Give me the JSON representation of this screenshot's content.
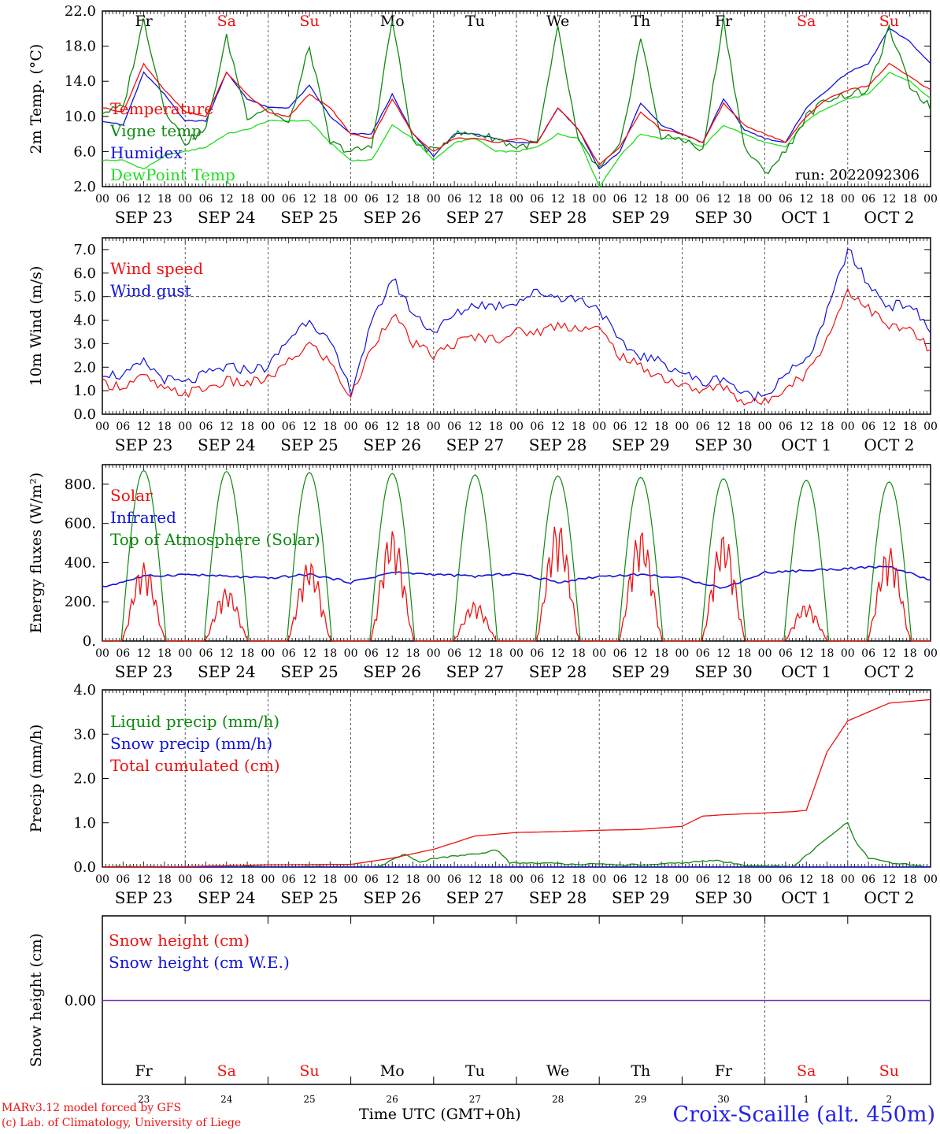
{
  "run_label": "run: 2022092306",
  "footer": {
    "model_line": "MARv3.12 model forced by GFS",
    "copyright_line": "(c) Lab. of Climatology, University of Liege",
    "station": "Croix-Scaille (alt. 450m)",
    "time_axis": "Time UTC (GMT+0h)"
  },
  "colors": {
    "red": "#ee1111",
    "green": "#118811",
    "blue": "#1111dd",
    "lightgreen": "#22dd22",
    "purple": "#7733aa"
  },
  "chart_data": [
    {
      "type": "line",
      "ylabel": "2m Temp. (°C)",
      "ylim": [
        2.0,
        22.0
      ],
      "yticks": [
        "22.0",
        "18.0",
        "14.0",
        "10.0",
        "6.0",
        "2.0"
      ],
      "x_hours": [
        0,
        6,
        12,
        18,
        24,
        30,
        36,
        42,
        48,
        54,
        60,
        66,
        72,
        78,
        84,
        90,
        96,
        102,
        108,
        114,
        120,
        126,
        132,
        138,
        144,
        150,
        156,
        162,
        168,
        174,
        180,
        186,
        192,
        198,
        204,
        210,
        216,
        222,
        228,
        234,
        240
      ],
      "series": [
        {
          "name": "Temperature",
          "color": "red",
          "values": [
            11.0,
            10.5,
            16.0,
            13.0,
            10.5,
            10.0,
            15.0,
            12.5,
            10.5,
            10.0,
            12.5,
            11.0,
            8.0,
            7.5,
            12.0,
            8.0,
            6.0,
            7.5,
            7.5,
            7.0,
            7.5,
            7.0,
            11.0,
            8.5,
            4.5,
            6.5,
            10.5,
            8.5,
            8.0,
            7.0,
            11.5,
            9.0,
            8.0,
            7.0,
            10.0,
            12.0,
            13.0,
            13.5,
            16.0,
            14.5,
            13.0
          ]
        },
        {
          "name": "Vigne temp",
          "color": "green",
          "values": [
            10.5,
            11.0,
            21.0,
            11.0,
            7.0,
            8.5,
            19.0,
            10.0,
            11.0,
            9.0,
            18.0,
            7.0,
            6.0,
            6.5,
            21.0,
            7.0,
            6.0,
            8.0,
            8.0,
            7.5,
            6.5,
            7.0,
            20.0,
            7.0,
            4.0,
            6.5,
            19.0,
            7.5,
            7.5,
            6.0,
            21.0,
            6.5,
            3.5,
            6.0,
            10.0,
            12.0,
            12.5,
            13.0,
            20.0,
            13.5,
            11.0
          ]
        },
        {
          "name": "Humidex",
          "color": "blue",
          "values": [
            9.5,
            9.0,
            15.0,
            12.5,
            9.5,
            9.5,
            15.0,
            12.0,
            11.0,
            11.0,
            13.5,
            10.0,
            8.0,
            8.0,
            12.5,
            8.0,
            5.5,
            8.0,
            8.0,
            7.5,
            7.0,
            7.0,
            11.0,
            8.5,
            4.0,
            6.0,
            11.5,
            9.0,
            8.0,
            7.0,
            12.0,
            8.5,
            7.5,
            7.0,
            11.0,
            13.0,
            15.0,
            16.0,
            20.0,
            18.5,
            16.0
          ]
        },
        {
          "name": "DewPoint Temp",
          "color": "lightgreen",
          "values": [
            5.0,
            5.0,
            4.0,
            5.5,
            6.0,
            6.5,
            8.0,
            8.5,
            9.5,
            9.5,
            9.5,
            7.0,
            5.0,
            5.0,
            9.0,
            7.5,
            5.0,
            7.0,
            7.5,
            6.0,
            6.0,
            6.5,
            8.0,
            7.5,
            2.0,
            5.5,
            8.0,
            7.5,
            7.5,
            6.5,
            9.0,
            8.0,
            7.0,
            6.5,
            9.5,
            11.0,
            12.0,
            12.5,
            15.0,
            14.0,
            12.0
          ]
        }
      ],
      "legend": "top-left"
    },
    {
      "type": "line",
      "ylabel": "10m Wind (m/s)",
      "ylim": [
        0.0,
        7.5
      ],
      "yticks": [
        "7.0",
        "6.0",
        "5.0",
        "4.0",
        "3.0",
        "2.0",
        "1.0",
        "0.0"
      ],
      "reference_line": 5.0,
      "x_hours": [
        0,
        6,
        12,
        18,
        24,
        30,
        36,
        42,
        48,
        54,
        60,
        66,
        72,
        78,
        84,
        90,
        96,
        102,
        108,
        114,
        120,
        126,
        132,
        138,
        144,
        150,
        156,
        162,
        168,
        174,
        180,
        186,
        192,
        198,
        204,
        210,
        216,
        222,
        228,
        234,
        240
      ],
      "series": [
        {
          "name": "Wind speed",
          "color": "red",
          "values": [
            1.3,
            1.2,
            1.6,
            1.0,
            0.9,
            1.1,
            1.4,
            1.3,
            1.5,
            2.2,
            3.0,
            2.2,
            0.7,
            2.8,
            4.3,
            3.0,
            2.5,
            3.0,
            3.3,
            3.2,
            3.5,
            3.5,
            3.8,
            3.7,
            3.6,
            2.5,
            2.0,
            1.6,
            1.2,
            1.0,
            1.2,
            0.5,
            0.5,
            1.2,
            1.7,
            3.2,
            5.3,
            4.5,
            3.7,
            3.6,
            2.7
          ]
        },
        {
          "name": "Wind gust",
          "color": "blue",
          "values": [
            1.8,
            1.6,
            2.2,
            1.5,
            1.3,
            1.7,
            2.0,
            1.9,
            2.0,
            3.2,
            4.1,
            3.0,
            1.0,
            3.8,
            5.8,
            4.3,
            3.5,
            4.2,
            4.7,
            4.6,
            4.8,
            5.2,
            5.0,
            4.9,
            4.5,
            3.0,
            2.5,
            2.2,
            1.8,
            1.3,
            1.6,
            0.8,
            0.8,
            1.8,
            2.2,
            4.3,
            7.0,
            5.5,
            4.6,
            4.7,
            3.5
          ]
        }
      ],
      "legend": "top-left"
    },
    {
      "type": "line",
      "ylabel": "Energy fluxes (W/m²)",
      "ylim": [
        0,
        900
      ],
      "yticks": [
        "800.",
        "600.",
        "400.",
        "200.",
        "0."
      ],
      "series": [
        {
          "name": "Solar",
          "color": "red",
          "daily_peak": [
            400,
            270,
            410,
            570,
            200,
            610,
            570,
            550,
            190,
            480
          ]
        },
        {
          "name": "Infrared",
          "color": "blue",
          "values": [
            275,
            330,
            340,
            330,
            320,
            340,
            300,
            350,
            340,
            330,
            345,
            300,
            330,
            340,
            320,
            270,
            350,
            360,
            370,
            380,
            310
          ]
        },
        {
          "name": "Top of Atmosphere (Solar)",
          "color": "green",
          "daily_peak": [
            870,
            865,
            860,
            855,
            848,
            842,
            835,
            828,
            820,
            812
          ]
        }
      ],
      "legend": "top-left"
    },
    {
      "type": "line",
      "ylabel": "Precip (mm/h)",
      "ylim": [
        0.0,
        4.0
      ],
      "yticks": [
        "4.0",
        "3.0",
        "2.0",
        "1.0",
        "0.0"
      ],
      "series": [
        {
          "name": "Liquid precip (mm/h)",
          "color": "green",
          "x_hours": [
            0,
            80,
            88,
            92,
            96,
            110,
            114,
            118,
            150,
            160,
            178,
            185,
            200,
            214,
            216,
            218,
            222,
            228,
            234,
            240
          ],
          "values": [
            0,
            0,
            0.3,
            0.1,
            0.2,
            0.3,
            0.4,
            0.1,
            0.05,
            0.05,
            0.15,
            0.05,
            0,
            0.9,
            1.0,
            0.6,
            0.2,
            0.1,
            0.05,
            0
          ]
        },
        {
          "name": "Snow precip (mm/h)",
          "color": "blue",
          "x_hours": [
            0,
            240
          ],
          "values": [
            0,
            0
          ]
        },
        {
          "name": "Total cumulated (cm)",
          "color": "red",
          "x_hours": [
            0,
            24,
            48,
            72,
            84,
            96,
            108,
            120,
            132,
            144,
            156,
            168,
            174,
            180,
            200,
            204,
            210,
            216,
            228,
            240
          ],
          "values": [
            0,
            0.01,
            0.05,
            0.06,
            0.2,
            0.4,
            0.7,
            0.78,
            0.8,
            0.83,
            0.85,
            0.92,
            1.15,
            1.18,
            1.25,
            1.28,
            2.6,
            3.3,
            3.7,
            3.78
          ]
        }
      ],
      "legend": "top-left"
    },
    {
      "type": "line",
      "ylabel": "Snow height (cm)",
      "yticks": [
        "0.00"
      ],
      "series": [
        {
          "name": "Snow height (cm)",
          "color": "red",
          "values": [
            0.0,
            0.0
          ]
        },
        {
          "name": "Snow height (cm W.E.)",
          "color": "blue",
          "values": [
            0.0,
            0.0
          ]
        }
      ],
      "legend": "top-left"
    }
  ],
  "axis": {
    "hour_labels": [
      "00",
      "06",
      "12",
      "18"
    ],
    "final_label": "00",
    "date_labels": [
      "SEP 23",
      "SEP 24",
      "SEP 25",
      "SEP 26",
      "SEP 27",
      "SEP 28",
      "SEP 29",
      "SEP 30",
      "OCT  1",
      "OCT  2"
    ],
    "day_names": [
      "Fr",
      "Sa",
      "Su",
      "Mo",
      "Tu",
      "We",
      "Th",
      "Fr",
      "Sa",
      "Su"
    ],
    "day_name_colors": [
      "black",
      "red",
      "red",
      "black",
      "black",
      "black",
      "black",
      "black",
      "red",
      "red"
    ],
    "day_numbers": [
      "23",
      "24",
      "25",
      "26",
      "27",
      "28",
      "29",
      "30",
      "1",
      "2"
    ]
  }
}
